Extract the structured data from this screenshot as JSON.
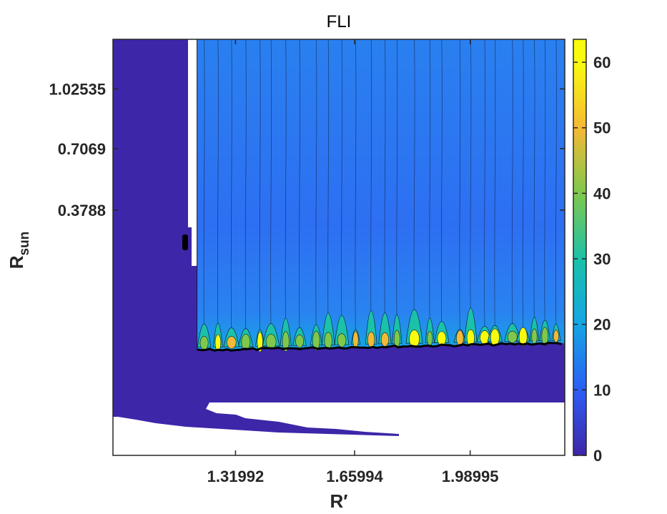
{
  "chart_data": {
    "type": "heatmap",
    "subtype": "filled contour map",
    "title": "FLI",
    "xlabel": "R′",
    "ylabel": {
      "main": "R",
      "subscript": "sun"
    },
    "x_ticks": [
      1.31992,
      1.65994,
      1.98995
    ],
    "x_tick_labels": [
      "1.31992",
      "1.65994",
      "1.98995"
    ],
    "y_ticks": [
      0.3788,
      0.7069,
      1.02535
    ],
    "y_tick_labels": [
      "0.3788",
      "0.7069",
      "1.02535"
    ],
    "xlim": [
      0.97,
      2.26
    ],
    "ylim": [
      -0.93,
      1.29
    ],
    "colorbar": {
      "colormap": "parula",
      "range": [
        0,
        63.5
      ],
      "ticks": [
        0,
        10,
        20,
        30,
        40,
        50,
        60
      ],
      "tick_labels": [
        "0",
        "10",
        "20",
        "30",
        "40",
        "50",
        "60"
      ]
    },
    "regions": {
      "low_fli_floor": 0,
      "chaotic_band_x_start": 1.21,
      "chaotic_band_lower_y": 0.378,
      "typical_band_value": 15,
      "peak_value": 63
    },
    "grid": false,
    "colors": {
      "cmap_0": "#3e26a8",
      "cmap_10": "#2d5df6",
      "cmap_20": "#13a6e4",
      "cmap_30": "#1bc1a9",
      "cmap_40": "#80c84c",
      "cmap_50": "#f4b935",
      "cmap_60": "#f9fb0e",
      "axis": "#262626"
    }
  }
}
